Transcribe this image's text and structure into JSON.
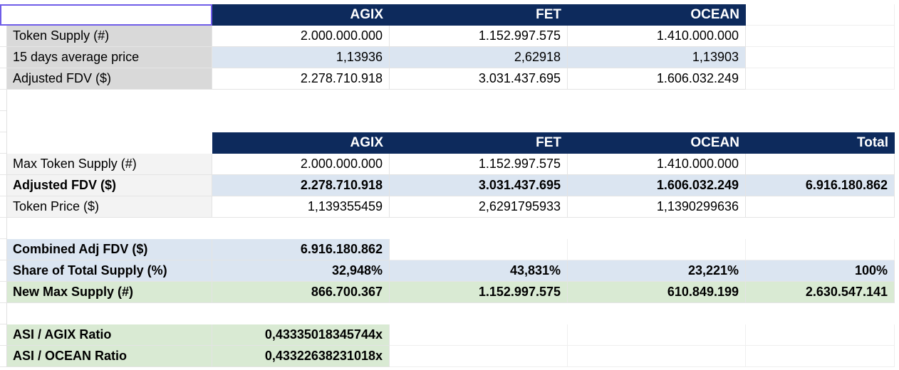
{
  "colors": {
    "header_navy": "#0d2a5c",
    "row_blue": "#dbe5f1",
    "row_green": "#d9ead3",
    "label_gray": "#d9d9d9",
    "label_light_gray": "#f3f3f3",
    "selection_border": "#6f5de8"
  },
  "table1": {
    "headers": [
      "AGIX",
      "FET",
      "OCEAN"
    ],
    "rows": [
      {
        "label": "Token Supply (#)",
        "values": [
          "2.000.000.000",
          "1.152.997.575",
          "1.410.000.000"
        ]
      },
      {
        "label": "15 days average price",
        "values": [
          "1,13936",
          "2,62918",
          "1,13903"
        ]
      },
      {
        "label": "Adjusted FDV ($)",
        "values": [
          "2.278.710.918",
          "3.031.437.695",
          "1.606.032.249"
        ]
      }
    ]
  },
  "table2": {
    "headers": [
      "AGIX",
      "FET",
      "OCEAN",
      "Total"
    ],
    "rows": [
      {
        "label": "Max Token Supply (#)",
        "values": [
          "2.000.000.000",
          "1.152.997.575",
          "1.410.000.000",
          ""
        ]
      },
      {
        "label": "Adjusted FDV ($)",
        "values": [
          "2.278.710.918",
          "3.031.437.695",
          "1.606.032.249",
          "6.916.180.862"
        ]
      },
      {
        "label": "Token Price ($)",
        "values": [
          "1,139355459",
          "2,6291795933",
          "1,1390299636",
          ""
        ]
      }
    ]
  },
  "summary": {
    "combined_label": "Combined Adj FDV ($)",
    "combined_value": "6.916.180.862",
    "share_label": "Share of Total Supply (%)",
    "share_values": [
      "32,948%",
      "43,831%",
      "23,221%",
      "100%"
    ],
    "new_max_label": "New Max Supply (#)",
    "new_max_values": [
      "866.700.367",
      "1.152.997.575",
      "610.849.199",
      "2.630.547.141"
    ]
  },
  "ratios": {
    "agix_label": "ASI / AGIX Ratio",
    "agix_value": "0,43335018345744x",
    "ocean_label": "ASI / OCEAN Ratio",
    "ocean_value": "0,43322638231018x"
  }
}
